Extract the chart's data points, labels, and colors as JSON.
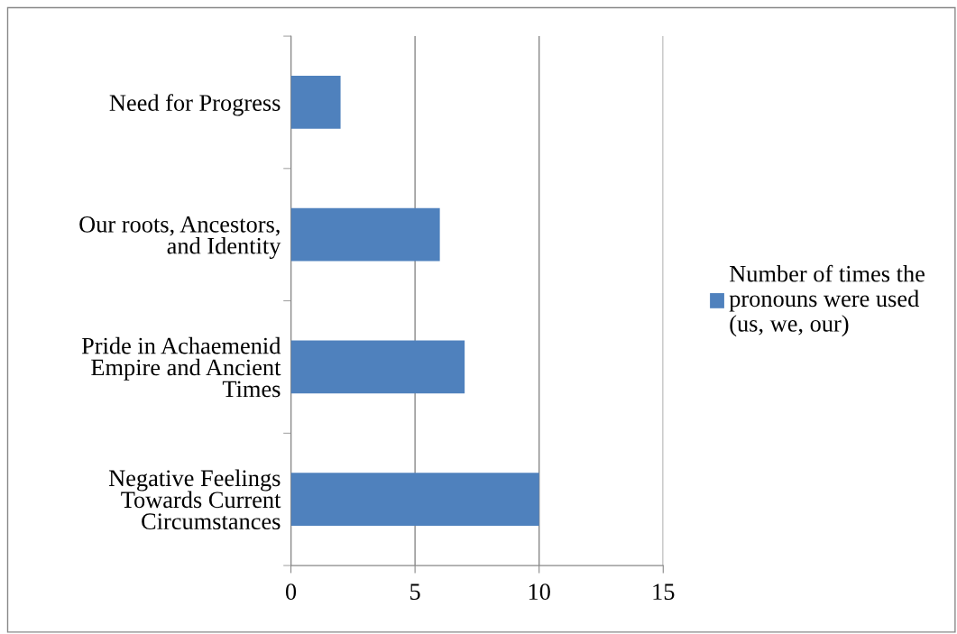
{
  "chart_data": {
    "type": "bar",
    "orientation": "horizontal",
    "categories": [
      "Need for Progress",
      "Our roots, Ancestors,\nand Identity",
      "Pride in Achaemenid\nEmpire and Ancient\nTimes",
      "Negative Feelings\nTowards Current\nCircumstances"
    ],
    "series": [
      {
        "name": "Number of times the\npronouns were used\n(us, we, our)",
        "color": "#4f81bd",
        "values": [
          2,
          6,
          7,
          10
        ]
      }
    ],
    "xlim": [
      0,
      15
    ],
    "xticks": [
      0,
      5,
      10,
      15
    ],
    "grid": "x",
    "legend": "right"
  }
}
